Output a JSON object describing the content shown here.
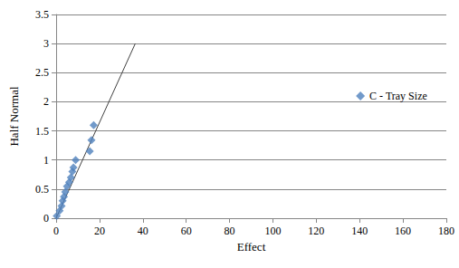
{
  "chart_data": {
    "type": "scatter",
    "x_label": "Effect",
    "y_label": "Half Normal",
    "series": [
      {
        "name": "C - Tray Size",
        "type": "scatter",
        "marker": "diamond",
        "color": "#4f81bd",
        "x": [
          0.3,
          1.6,
          2.5,
          3.0,
          3.6,
          4.2,
          5.0,
          6.0,
          6.8,
          7.5,
          8.0,
          9.0,
          15.5,
          16.3,
          17.3
        ],
        "values": [
          0.04,
          0.13,
          0.21,
          0.3,
          0.37,
          0.45,
          0.55,
          0.62,
          0.7,
          0.8,
          0.87,
          1.0,
          1.15,
          1.34,
          1.6
        ]
      },
      {
        "type": "line",
        "color": "#404040",
        "line_style": "solid",
        "x": [
          0,
          36.5
        ],
        "values": [
          0,
          3.0
        ]
      }
    ],
    "xlim": [
      0,
      180
    ],
    "xticks": [
      0,
      20,
      40,
      60,
      80,
      100,
      120,
      140,
      160,
      180
    ],
    "ylim": [
      0,
      3.5
    ],
    "yticks": [
      0,
      0.5,
      1,
      1.5,
      2,
      2.5,
      3,
      3.5
    ],
    "grid": true,
    "legend": "right"
  }
}
